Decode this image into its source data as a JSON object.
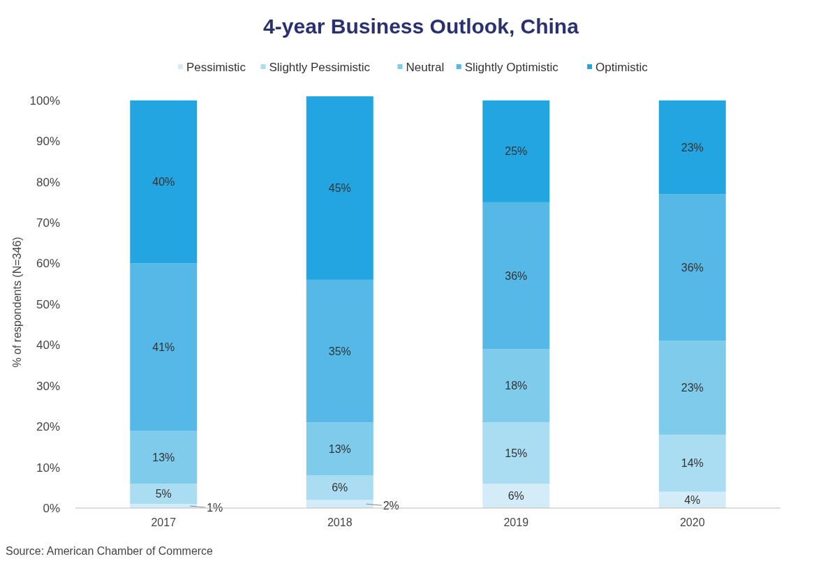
{
  "chart_data": {
    "type": "bar",
    "stacked": true,
    "title": "4-year Business Outlook, China",
    "ylabel": "% of respondents (N=346)",
    "categories": [
      "2017",
      "2018",
      "2019",
      "2020"
    ],
    "ylim": [
      0,
      101
    ],
    "yticks": [
      {
        "value": 0,
        "label": "0%"
      },
      {
        "value": 10,
        "label": "10%"
      },
      {
        "value": 20,
        "label": "20%"
      },
      {
        "value": 30,
        "label": "30%"
      },
      {
        "value": 40,
        "label": "40%"
      },
      {
        "value": 50,
        "label": "50%"
      },
      {
        "value": 60,
        "label": "60%"
      },
      {
        "value": 70,
        "label": "70%"
      },
      {
        "value": 80,
        "label": "80%"
      },
      {
        "value": 90,
        "label": "90%"
      },
      {
        "value": 100,
        "label": "100%"
      }
    ],
    "legend": "top",
    "grid": false,
    "annotations": [
      "Source: American Chamber of Commerce"
    ],
    "series": [
      {
        "name": "Pessimistic",
        "color": "#d4ecf8",
        "values": [
          1,
          2,
          6,
          4
        ],
        "value_labels": [
          "1%",
          "2%",
          "6%",
          "4%"
        ]
      },
      {
        "name": "Slightly Pessimistic",
        "color": "#aadcf2",
        "values": [
          5,
          6,
          15,
          14
        ],
        "value_labels": [
          "5%",
          "6%",
          "15%",
          "14%"
        ]
      },
      {
        "name": "Neutral",
        "color": "#7ecbec",
        "values": [
          13,
          13,
          18,
          23
        ],
        "value_labels": [
          "13%",
          "13%",
          "18%",
          "23%"
        ]
      },
      {
        "name": "Slightly Optimistic",
        "color": "#55b8e6",
        "values": [
          41,
          35,
          36,
          36
        ],
        "value_labels": [
          "41%",
          "35%",
          "36%",
          "36%"
        ]
      },
      {
        "name": "Optimistic",
        "color": "#22a5e0",
        "values": [
          40,
          45,
          25,
          23
        ],
        "value_labels": [
          "40%",
          "45%",
          "25%",
          "23%"
        ]
      }
    ]
  }
}
